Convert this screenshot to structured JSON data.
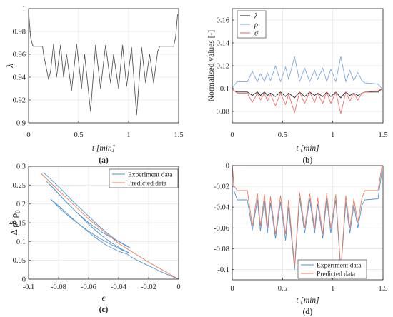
{
  "chart_data": [
    {
      "panel": "(a)",
      "type": "line",
      "xlabel": "t [min]",
      "ylabel": "λ",
      "xlim": [
        0,
        1.5
      ],
      "ylim": [
        0.9,
        1.0
      ],
      "xticks": [
        "0",
        "0.5",
        "1",
        "1.5"
      ],
      "yticks": [
        "0.9",
        "0.92",
        "0.94",
        "0.96",
        "0.98",
        "1"
      ],
      "grid": true,
      "series": [
        {
          "color": "#555555",
          "x": [
            0,
            0.02,
            0.04,
            0.05,
            0.14,
            0.15,
            0.2,
            0.22,
            0.25,
            0.28,
            0.32,
            0.35,
            0.38,
            0.43,
            0.48,
            0.53,
            0.56,
            0.62,
            0.67,
            0.72,
            0.77,
            0.82,
            0.85,
            0.9,
            0.94,
            0.98,
            1.03,
            1.08,
            1.13,
            1.17,
            1.21,
            1.25,
            1.29,
            1.31,
            1.32,
            1.45,
            1.47,
            1.49
          ],
          "y": [
            0.998,
            0.975,
            0.968,
            0.967,
            0.967,
            0.96,
            0.938,
            0.945,
            0.969,
            0.94,
            0.968,
            0.94,
            0.96,
            0.928,
            0.969,
            0.93,
            0.96,
            0.91,
            0.968,
            0.93,
            0.968,
            0.935,
            0.96,
            0.93,
            0.968,
            0.932,
            0.966,
            0.907,
            0.966,
            0.935,
            0.96,
            0.935,
            0.962,
            0.967,
            0.967,
            0.967,
            0.975,
            0.995
          ]
        }
      ]
    },
    {
      "panel": "(b)",
      "type": "line",
      "xlabel": "t [min]",
      "ylabel": "Normalised values [-]",
      "xlim": [
        0,
        1.5
      ],
      "ylim": [
        0.07,
        0.17
      ],
      "xticks": [
        "0",
        "0.5",
        "1",
        "1.5"
      ],
      "yticks": [
        "0.08",
        "0.1",
        "0.12",
        "0.14",
        "0.16"
      ],
      "grid": true,
      "legend_position": "top-left",
      "series": [
        {
          "name": "λ",
          "color": "#222222",
          "x": [
            0,
            0.02,
            0.05,
            0.15,
            0.2,
            0.25,
            0.28,
            0.32,
            0.35,
            0.38,
            0.43,
            0.48,
            0.53,
            0.56,
            0.62,
            0.67,
            0.72,
            0.77,
            0.82,
            0.85,
            0.9,
            0.94,
            0.98,
            1.03,
            1.08,
            1.13,
            1.17,
            1.21,
            1.25,
            1.29,
            1.32,
            1.45,
            1.49
          ],
          "y": [
            0.1,
            0.098,
            0.097,
            0.097,
            0.094,
            0.097,
            0.094,
            0.097,
            0.094,
            0.096,
            0.093,
            0.097,
            0.093,
            0.096,
            0.092,
            0.097,
            0.093,
            0.097,
            0.094,
            0.096,
            0.093,
            0.097,
            0.093,
            0.097,
            0.092,
            0.097,
            0.094,
            0.096,
            0.094,
            0.096,
            0.097,
            0.097,
            0.1
          ]
        },
        {
          "name": "ρ",
          "color": "#7fa8e0",
          "x": [
            0,
            0.02,
            0.05,
            0.15,
            0.2,
            0.25,
            0.28,
            0.32,
            0.35,
            0.38,
            0.43,
            0.48,
            0.53,
            0.56,
            0.62,
            0.67,
            0.72,
            0.77,
            0.82,
            0.85,
            0.9,
            0.94,
            0.98,
            1.03,
            1.08,
            1.13,
            1.17,
            1.21,
            1.25,
            1.29,
            1.32,
            1.45,
            1.49
          ],
          "y": [
            0.1,
            0.103,
            0.106,
            0.106,
            0.115,
            0.106,
            0.113,
            0.106,
            0.114,
            0.107,
            0.12,
            0.106,
            0.119,
            0.108,
            0.128,
            0.106,
            0.118,
            0.106,
            0.116,
            0.108,
            0.118,
            0.106,
            0.117,
            0.106,
            0.128,
            0.106,
            0.116,
            0.107,
            0.114,
            0.107,
            0.105,
            0.104,
            0.1
          ]
        },
        {
          "name": "σ",
          "color": "#ef6a6a",
          "x": [
            0,
            0.02,
            0.05,
            0.15,
            0.2,
            0.25,
            0.28,
            0.32,
            0.35,
            0.38,
            0.43,
            0.48,
            0.53,
            0.56,
            0.62,
            0.67,
            0.72,
            0.77,
            0.82,
            0.85,
            0.9,
            0.94,
            0.98,
            1.03,
            1.08,
            1.13,
            1.17,
            1.21,
            1.25,
            1.29,
            1.32,
            1.45,
            1.49
          ],
          "y": [
            0.1,
            0.098,
            0.096,
            0.096,
            0.088,
            0.096,
            0.09,
            0.096,
            0.089,
            0.095,
            0.085,
            0.096,
            0.086,
            0.095,
            0.079,
            0.097,
            0.087,
            0.097,
            0.088,
            0.096,
            0.087,
            0.097,
            0.087,
            0.097,
            0.078,
            0.097,
            0.089,
            0.096,
            0.09,
            0.096,
            0.097,
            0.098,
            0.1
          ]
        }
      ]
    },
    {
      "panel": "(c)",
      "type": "line",
      "xlabel": "ϵ",
      "ylabel": "Δ ρ/ ρ0",
      "ylabel_main": "Δ ρ/ ρ",
      "ylabel_sub": "0",
      "xlim": [
        -0.1,
        0
      ],
      "ylim": [
        0,
        0.3
      ],
      "xticks": [
        "-0.1",
        "-0.08",
        "-0.06",
        "-0.04",
        "-0.02",
        "0"
      ],
      "yticks": [
        "0",
        "0.05",
        "0.1",
        "0.15",
        "0.2",
        "0.25",
        "0.3"
      ],
      "grid": true,
      "legend_position": "top-right",
      "series": [
        {
          "name": "Experiment data",
          "color": "#4f93cf",
          "x": [
            -0.09,
            -0.085,
            -0.078,
            -0.07,
            -0.062,
            -0.055,
            -0.048,
            -0.042,
            -0.035,
            -0.032,
            -0.04,
            -0.05,
            -0.06,
            -0.068,
            -0.075,
            -0.082,
            -0.088,
            -0.083,
            -0.076,
            -0.068,
            -0.06,
            -0.052,
            -0.045,
            -0.038,
            -0.033,
            -0.038,
            -0.046,
            -0.054,
            -0.062,
            -0.07,
            -0.078,
            -0.085,
            -0.08,
            -0.072,
            -0.064,
            -0.056,
            -0.048,
            -0.04,
            -0.034,
            -0.03,
            -0.025,
            -0.018,
            -0.012,
            -0.006,
            0
          ],
          "y": [
            0.283,
            0.265,
            0.238,
            0.205,
            0.175,
            0.148,
            0.124,
            0.105,
            0.09,
            0.082,
            0.1,
            0.122,
            0.15,
            0.178,
            0.205,
            0.235,
            0.26,
            0.24,
            0.21,
            0.178,
            0.146,
            0.118,
            0.097,
            0.08,
            0.07,
            0.078,
            0.094,
            0.112,
            0.133,
            0.157,
            0.183,
            0.212,
            0.195,
            0.166,
            0.138,
            0.112,
            0.09,
            0.074,
            0.066,
            0.055,
            0.045,
            0.032,
            0.02,
            0.01,
            0
          ]
        },
        {
          "name": "Predicted data",
          "color": "#ef7a5a",
          "x": [
            -0.092,
            -0.08,
            -0.06,
            -0.04,
            -0.02,
            0
          ],
          "y": [
            0.282,
            0.236,
            0.16,
            0.095,
            0.045,
            0
          ]
        }
      ]
    },
    {
      "panel": "(d)",
      "type": "line",
      "xlabel": "t  [min]",
      "ylabel": "ϵ",
      "xlim": [
        0,
        1.5
      ],
      "ylim": [
        -0.11,
        0
      ],
      "xticks": [
        "0",
        "0.5",
        "1",
        "1.5"
      ],
      "yticks": [
        "-0.1",
        "-0.08",
        "-0.06",
        "-0.04",
        "-0.02",
        "0"
      ],
      "grid": true,
      "legend_position": "bottom-right",
      "series": [
        {
          "name": "Experiment data",
          "color": "#4f93cf",
          "x": [
            0,
            0.02,
            0.05,
            0.15,
            0.2,
            0.25,
            0.28,
            0.32,
            0.35,
            0.38,
            0.43,
            0.48,
            0.53,
            0.56,
            0.62,
            0.67,
            0.72,
            0.77,
            0.82,
            0.85,
            0.9,
            0.94,
            0.98,
            1.03,
            1.08,
            1.13,
            1.17,
            1.21,
            1.25,
            1.29,
            1.32,
            1.45,
            1.49
          ],
          "y": [
            0,
            -0.025,
            -0.033,
            -0.033,
            -0.062,
            -0.033,
            -0.063,
            -0.034,
            -0.065,
            -0.036,
            -0.07,
            -0.035,
            -0.072,
            -0.04,
            -0.1,
            -0.031,
            -0.065,
            -0.032,
            -0.065,
            -0.037,
            -0.07,
            -0.032,
            -0.065,
            -0.033,
            -0.102,
            -0.035,
            -0.065,
            -0.038,
            -0.06,
            -0.038,
            -0.033,
            -0.032,
            -0.005
          ]
        },
        {
          "name": "Predicted data",
          "color": "#ef7a5a",
          "x": [
            0,
            0.02,
            0.05,
            0.15,
            0.2,
            0.25,
            0.28,
            0.32,
            0.35,
            0.38,
            0.43,
            0.48,
            0.53,
            0.56,
            0.62,
            0.67,
            0.72,
            0.77,
            0.82,
            0.85,
            0.9,
            0.94,
            0.98,
            1.03,
            1.08,
            1.13,
            1.17,
            1.21,
            1.25,
            1.29,
            1.32,
            1.45,
            1.49
          ],
          "y": [
            0,
            -0.02,
            -0.024,
            -0.024,
            -0.058,
            -0.027,
            -0.058,
            -0.028,
            -0.06,
            -0.03,
            -0.066,
            -0.029,
            -0.066,
            -0.033,
            -0.097,
            -0.026,
            -0.06,
            -0.027,
            -0.061,
            -0.031,
            -0.066,
            -0.027,
            -0.06,
            -0.028,
            -0.1,
            -0.029,
            -0.06,
            -0.032,
            -0.055,
            -0.031,
            -0.024,
            -0.024,
            0
          ]
        }
      ]
    }
  ]
}
